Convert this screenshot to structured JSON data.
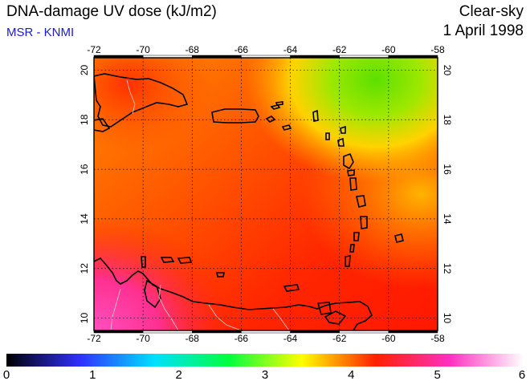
{
  "header": {
    "title": "DNA-damage UV dose (kJ/m2)",
    "subtitle": "MSR - KNMI",
    "condition": "Clear-sky",
    "date": "1 April 1998"
  },
  "map": {
    "lon_range": [
      -72,
      -58
    ],
    "lat_range": [
      9.5,
      20.5
    ],
    "lon_ticks": [
      "-72",
      "-70",
      "-68",
      "-66",
      "-64",
      "-62",
      "-60",
      "-58"
    ],
    "lat_ticks": [
      "10",
      "12",
      "14",
      "16",
      "18",
      "20"
    ],
    "grid": true,
    "colors": {
      "lowest": "#ff2a00",
      "mid": "#ff7a00",
      "high": "#ffe000",
      "green": "#6ee000",
      "magenta": "#ff40b0",
      "land_outline": "#000000",
      "border": "#c0c0c0"
    }
  },
  "colorbar": {
    "min": 0,
    "max": 6,
    "labels": [
      "0",
      "1",
      "2",
      "3",
      "4",
      "5",
      "6"
    ],
    "stops": [
      "#000000",
      "#3030ff",
      "#00e0ff",
      "#00ff40",
      "#ffff00",
      "#ff2000",
      "#ff30c0",
      "#ffffff"
    ]
  }
}
